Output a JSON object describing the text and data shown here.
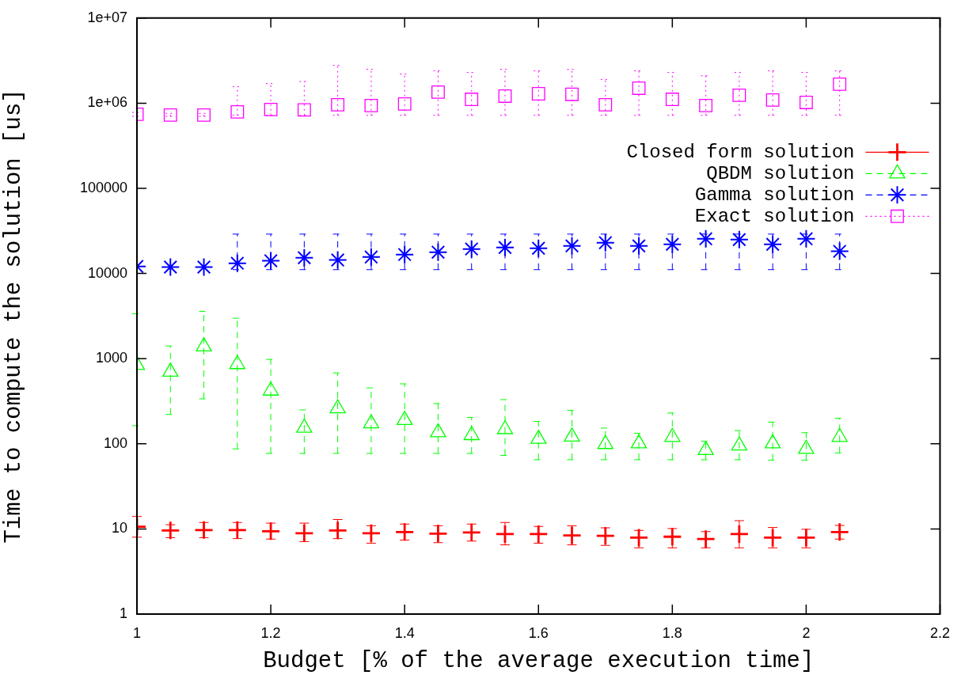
{
  "chart_data": {
    "type": "scatter",
    "xlabel": "Budget [% of the average execution time]",
    "ylabel": "Time to compute the solution [us]",
    "log": "y",
    "grid": false,
    "legend": "top right",
    "x": [
      1,
      1.05,
      1.1,
      1.15,
      1.2,
      1.25,
      1.3,
      1.35,
      1.4,
      1.45,
      1.5,
      1.55,
      1.6,
      1.65,
      1.7,
      1.75,
      1.8,
      1.85,
      1.9,
      1.95,
      2,
      2.05
    ],
    "xlim": [
      1,
      2.2
    ],
    "xticks": [
      1,
      1.2,
      1.4,
      1.6,
      1.8,
      2,
      2.2
    ],
    "ylim": [
      1,
      10000000
    ],
    "yticks": [
      1,
      10,
      100,
      1000,
      10000,
      100000,
      {
        "value": 1000000,
        "label": "1e+06"
      },
      {
        "value": 10000000,
        "label": "1e+07"
      }
    ],
    "series": [
      {
        "name": "Closed form solution",
        "color": "#ff0000",
        "marker": "cross",
        "line_style": "solid",
        "values": [
          10.6,
          9.6,
          9.7,
          9.7,
          9.4,
          8.9,
          9.6,
          8.9,
          9.2,
          8.8,
          9.1,
          8.7,
          8.7,
          8.4,
          8.3,
          7.9,
          8.1,
          7.6,
          8.7,
          7.9,
          7.9,
          9.2
        ],
        "errors": [
          [
            8,
            14
          ],
          [
            7.9,
            11.2
          ],
          [
            7.9,
            11.9
          ],
          [
            7.7,
            11.9
          ],
          [
            7.6,
            11.7
          ],
          [
            7.1,
            11.7
          ],
          [
            7.7,
            12.9
          ],
          [
            6.8,
            10.9
          ],
          [
            7.4,
            11.4
          ],
          [
            6.9,
            10.9
          ],
          [
            7.2,
            11.4
          ],
          [
            6.5,
            11.9
          ],
          [
            6.8,
            10.7
          ],
          [
            6.5,
            10.9
          ],
          [
            6.4,
            10.3
          ],
          [
            6,
            9.6
          ],
          [
            6,
            10.1
          ],
          [
            6,
            9.3
          ],
          [
            6,
            12.5
          ],
          [
            6,
            10.4
          ],
          [
            6,
            9.9
          ],
          [
            7.6,
            11
          ]
        ]
      },
      {
        "name": "QBDM solution",
        "color": "#00ff00",
        "marker": "triangle",
        "line_style": "dashed",
        "values": [
          840,
          700,
          1390,
          860,
          420,
          154,
          260,
          173,
          190,
          136,
          126,
          148,
          114,
          121,
          99,
          101,
          120,
          84,
          95,
          101,
          87,
          120
        ],
        "errors": [
          [
            163,
            3370
          ],
          [
            221,
            1410
          ],
          [
            337,
            3590
          ],
          [
            87,
            2980
          ],
          [
            77,
            980
          ],
          [
            77,
            250
          ],
          [
            77,
            680
          ],
          [
            77,
            454
          ],
          [
            77,
            506
          ],
          [
            77,
            297
          ],
          [
            77,
            204
          ],
          [
            73,
            330
          ],
          [
            65,
            183
          ],
          [
            65,
            247
          ],
          [
            65,
            153
          ],
          [
            65,
            133
          ],
          [
            65,
            230
          ],
          [
            65,
            107
          ],
          [
            65,
            143
          ],
          [
            64,
            179
          ],
          [
            64,
            135
          ],
          [
            78,
            199
          ]
        ]
      },
      {
        "name": "Gamma solution",
        "color": "#0000ff",
        "marker": "star",
        "line_style": "dashed",
        "values": [
          12100,
          11900,
          11900,
          13200,
          14100,
          15300,
          14400,
          15600,
          16700,
          17800,
          19400,
          20200,
          19800,
          21100,
          23000,
          21100,
          22000,
          25500,
          25000,
          22000,
          25500,
          18200
        ],
        "errors": [
          null,
          null,
          null,
          [
            11100,
            29000
          ],
          [
            11100,
            29000
          ],
          [
            11100,
            29000
          ],
          [
            11100,
            29000
          ],
          [
            11100,
            29000
          ],
          [
            11100,
            29000
          ],
          [
            11100,
            29000
          ],
          [
            11100,
            29000
          ],
          [
            11100,
            29000
          ],
          [
            11100,
            29000
          ],
          [
            11100,
            29000
          ],
          [
            11100,
            29000
          ],
          [
            11100,
            29000
          ],
          [
            11100,
            29000
          ],
          [
            11100,
            29000
          ],
          [
            11100,
            29000
          ],
          [
            11100,
            29000
          ],
          [
            11100,
            29000
          ],
          [
            11100,
            29000
          ]
        ]
      },
      {
        "name": "Exact solution",
        "color": "#ff00ff",
        "marker": "square",
        "line_style": "dotted",
        "values": [
          741000,
          726000,
          726000,
          791000,
          844000,
          833000,
          958000,
          937000,
          979000,
          1350000,
          1110000,
          1210000,
          1290000,
          1270000,
          958000,
          1500000,
          1110000,
          937000,
          1240000,
          1090000,
          1020000,
          1670000
        ],
        "errors": [
          [
            700000,
            780000
          ],
          [
            700000,
            760000
          ],
          [
            700000,
            760000
          ],
          [
            720000,
            1560000
          ],
          [
            720000,
            1700000
          ],
          [
            720000,
            1800000
          ],
          [
            720000,
            2780000
          ],
          [
            720000,
            2500000
          ],
          [
            720000,
            2200000
          ],
          [
            720000,
            2400000
          ],
          [
            720000,
            2300000
          ],
          [
            720000,
            2500000
          ],
          [
            720000,
            2400000
          ],
          [
            720000,
            2500000
          ],
          [
            720000,
            1900000
          ],
          [
            720000,
            2400000
          ],
          [
            720000,
            2300000
          ],
          [
            720000,
            2100000
          ],
          [
            720000,
            2300000
          ],
          [
            720000,
            2400000
          ],
          [
            720000,
            2300000
          ],
          [
            720000,
            2400000
          ]
        ]
      }
    ]
  }
}
